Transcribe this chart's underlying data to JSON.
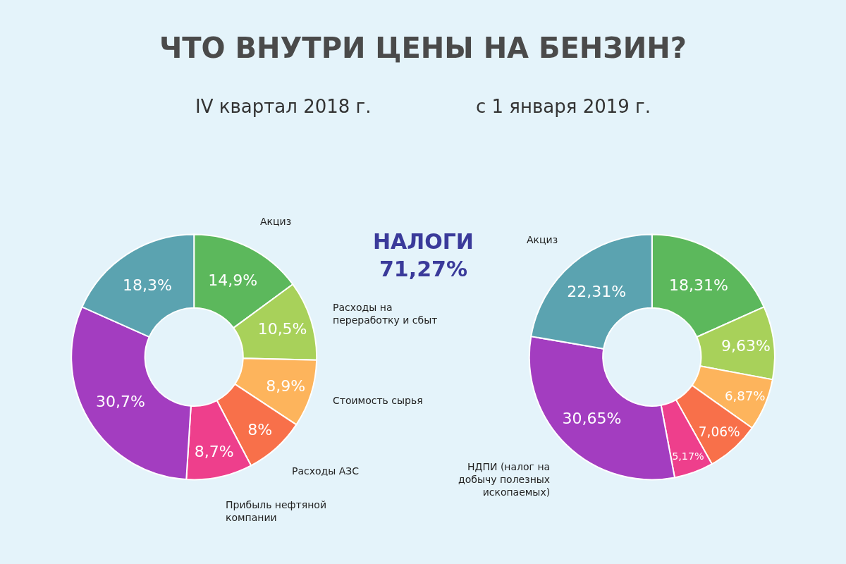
{
  "chart_data": [
    {
      "type": "donut",
      "title": "ЧТО ВНУТРИ ЦЕНЫ НА БЕНЗИН?",
      "subtitle": "IV квартал 2018 г.",
      "categories": [
        "Акциз",
        "Расходы на переработку и сбыт",
        "Стоимость сырья",
        "Расходы АЗС",
        "Прибыль нефтяной компании",
        null,
        null
      ],
      "values": [
        14.9,
        10.5,
        8.9,
        8,
        8.7,
        30.7,
        18.3
      ],
      "value_labels": [
        "14,9%",
        "10,5%",
        "8,9%",
        "8%",
        "8,7%",
        "30,7%",
        "18,3%"
      ],
      "colors": [
        "#5cb85c",
        "#a8d15a",
        "#fdb45c",
        "#f8704a",
        "#ee3f8c",
        "#a33dc0",
        "#5ba3b0"
      ],
      "annotations": [
        "НАЛОГИ 71,27%"
      ]
    },
    {
      "type": "donut",
      "subtitle": "с 1 января 2019 г.",
      "categories": [
        null,
        null,
        null,
        null,
        null,
        "НДПИ (налог на добычу полезных ископаемых)",
        "Акциз"
      ],
      "values": [
        18.31,
        9.63,
        6.87,
        7.06,
        5.17,
        30.65,
        22.31
      ],
      "value_labels": [
        "18,31%",
        "9,63%",
        "6,87%",
        "7,06%",
        "5,17%",
        "30,65%",
        "22,31%"
      ],
      "colors": [
        "#5cb85c",
        "#a8d15a",
        "#fdb45c",
        "#f8704a",
        "#ee3f8c",
        "#a33dc0",
        "#5ba3b0"
      ]
    }
  ]
}
